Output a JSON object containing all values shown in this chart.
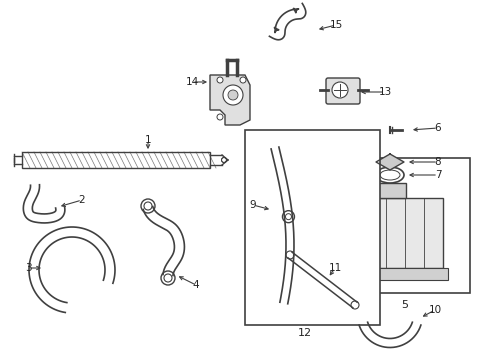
{
  "background_color": "#ffffff",
  "line_color": "#404040",
  "text_color": "#222222",
  "figsize": [
    4.89,
    3.6
  ],
  "dpi": 100
}
